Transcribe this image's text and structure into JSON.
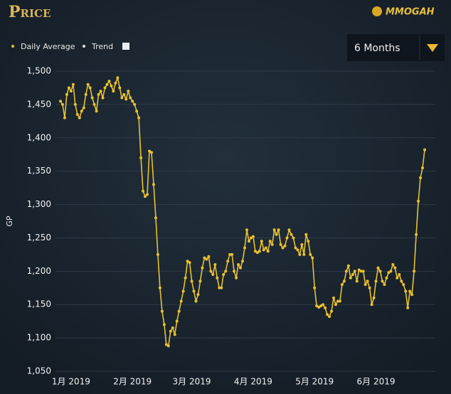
{
  "header": {
    "title": "Price",
    "logo": "MMOGAH",
    "dropdown": "6 Months"
  },
  "chart_data": {
    "type": "line",
    "ylabel": "GP",
    "trend_label": "Trend",
    "categories": [
      null,
      null,
      null,
      null,
      null,
      "1月 2019",
      null,
      null,
      null,
      null,
      null,
      null,
      null,
      null,
      null,
      null,
      null,
      null,
      null,
      null,
      null,
      null,
      null,
      null,
      null,
      null,
      null,
      null,
      null,
      null,
      null,
      null,
      null,
      null,
      "2月 2019",
      null,
      null,
      null,
      null,
      null,
      null,
      null,
      null,
      null,
      null,
      null,
      null,
      null,
      null,
      null,
      null,
      null,
      null,
      null,
      null,
      null,
      null,
      null,
      null,
      null,
      null,
      null,
      "3月 2019",
      null,
      null,
      null,
      null,
      null,
      null,
      null,
      null,
      null,
      null,
      null,
      null,
      null,
      null,
      null,
      null,
      null,
      null,
      null,
      null,
      null,
      null,
      null,
      null,
      null,
      null,
      null,
      null,
      "4月 2019",
      null,
      null,
      null,
      null,
      null,
      null,
      null,
      null,
      null,
      null,
      null,
      null,
      null,
      null,
      null,
      null,
      null,
      null,
      null,
      null,
      null,
      null,
      null,
      null,
      null,
      null,
      null,
      null,
      "5月 2019",
      null,
      null,
      null,
      null,
      null,
      null,
      null,
      null,
      null,
      null,
      null,
      null,
      null,
      null,
      null,
      null,
      null,
      null,
      null,
      null,
      null,
      null,
      null,
      null,
      null,
      null,
      null,
      null,
      "6月 2019",
      null,
      null,
      null,
      null,
      null,
      null,
      null,
      null,
      null,
      null,
      null,
      null,
      null,
      null,
      null,
      null,
      null,
      null,
      null,
      null,
      null,
      null,
      null
    ],
    "series": [
      {
        "name": "Daily Average",
        "color": "#e8c130",
        "values": [
          1455,
          1450,
          1430,
          1465,
          1475,
          1470,
          1480,
          1450,
          1435,
          1430,
          1440,
          1445,
          1465,
          1480,
          1475,
          1460,
          1450,
          1440,
          1465,
          1470,
          1460,
          1475,
          1480,
          1485,
          1478,
          1470,
          1482,
          1490,
          1475,
          1460,
          1465,
          1458,
          1470,
          1460,
          1455,
          1450,
          1440,
          1430,
          1370,
          1320,
          1312,
          1315,
          1380,
          1378,
          1330,
          1280,
          1225,
          1175,
          1140,
          1120,
          1090,
          1088,
          1110,
          1115,
          1105,
          1125,
          1140,
          1155,
          1170,
          1190,
          1215,
          1213,
          1185,
          1170,
          1155,
          1165,
          1185,
          1205,
          1220,
          1218,
          1222,
          1200,
          1195,
          1210,
          1190,
          1175,
          1175,
          1195,
          1200,
          1215,
          1225,
          1225,
          1200,
          1190,
          1210,
          1205,
          1215,
          1235,
          1262,
          1245,
          1250,
          1252,
          1230,
          1228,
          1230,
          1245,
          1232,
          1235,
          1230,
          1245,
          1240,
          1262,
          1255,
          1262,
          1240,
          1235,
          1238,
          1250,
          1262,
          1255,
          1250,
          1235,
          1232,
          1225,
          1240,
          1225,
          1255,
          1245,
          1225,
          1220,
          1175,
          1148,
          1146,
          1148,
          1150,
          1145,
          1135,
          1132,
          1140,
          1160,
          1150,
          1155,
          1155,
          1180,
          1185,
          1200,
          1208,
          1190,
          1195,
          1200,
          1185,
          1202,
          1200,
          1200,
          1180,
          1185,
          1175,
          1150,
          1160,
          1185,
          1205,
          1200,
          1185,
          1180,
          1190,
          1198,
          1200,
          1210,
          1205,
          1190,
          1195,
          1185,
          1180,
          1170,
          1145,
          1170,
          1165,
          1200,
          1255,
          1305,
          1340,
          1355,
          1382
        ]
      }
    ],
    "ylim": [
      1050,
      1500
    ],
    "yticks": [
      {
        "value": 1050,
        "label": "1,050"
      },
      {
        "value": 1100,
        "label": "1,100"
      },
      {
        "value": 1150,
        "label": "1,150"
      },
      {
        "value": 1200,
        "label": "1,200"
      },
      {
        "value": 1250,
        "label": "1,250"
      },
      {
        "value": 1300,
        "label": "1,300"
      },
      {
        "value": 1350,
        "label": "1,350"
      },
      {
        "value": 1400,
        "label": "1,400"
      },
      {
        "value": 1450,
        "label": "1,450"
      },
      {
        "value": 1500,
        "label": "1,500"
      }
    ],
    "grid": true
  }
}
